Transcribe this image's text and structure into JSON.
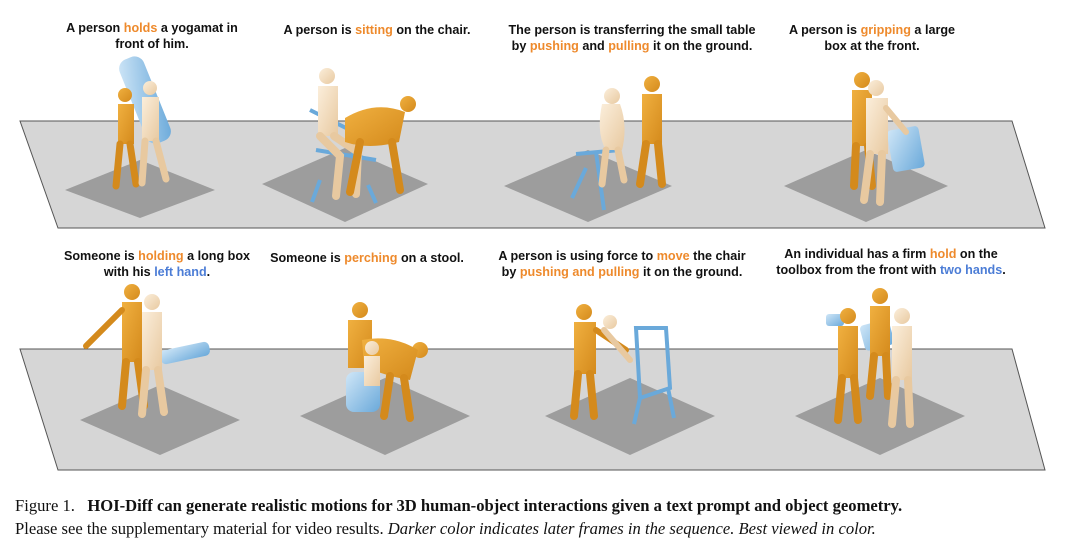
{
  "rows": [
    {
      "panels": [
        {
          "caption": [
            [
              {
                "t": "A person "
              },
              {
                "t": "holds",
                "c": "or"
              },
              {
                "t": " a yogamat in"
              }
            ],
            [
              {
                "t": "front of him."
              }
            ]
          ]
        },
        {
          "caption": [
            [
              {
                "t": "A person is "
              },
              {
                "t": "sitting",
                "c": "or"
              },
              {
                "t": " on the chair."
              }
            ]
          ]
        },
        {
          "caption": [
            [
              {
                "t": "The person is transferring the small table"
              }
            ],
            [
              {
                "t": "by "
              },
              {
                "t": "pushing",
                "c": "or"
              },
              {
                "t": " and "
              },
              {
                "t": "pulling",
                "c": "or"
              },
              {
                "t": " it on the ground."
              }
            ]
          ]
        },
        {
          "caption": [
            [
              {
                "t": "A person is "
              },
              {
                "t": "gripping",
                "c": "or"
              },
              {
                "t": " a large"
              }
            ],
            [
              {
                "t": "box at the front."
              }
            ]
          ]
        }
      ]
    },
    {
      "panels": [
        {
          "caption": [
            [
              {
                "t": "Someone is "
              },
              {
                "t": "holding",
                "c": "or"
              },
              {
                "t": " a long box"
              }
            ],
            [
              {
                "t": "with his "
              },
              {
                "t": "left hand",
                "c": "bl"
              },
              {
                "t": "."
              }
            ]
          ]
        },
        {
          "caption": [
            [
              {
                "t": "Someone is "
              },
              {
                "t": "perching",
                "c": "or"
              },
              {
                "t": " on a stool."
              }
            ]
          ]
        },
        {
          "caption": [
            [
              {
                "t": "A person is using force to "
              },
              {
                "t": "move",
                "c": "or"
              },
              {
                "t": " the chair"
              }
            ],
            [
              {
                "t": "by "
              },
              {
                "t": "pushing and pulling",
                "c": "or"
              },
              {
                "t": " it on the ground."
              }
            ]
          ]
        },
        {
          "caption": [
            [
              {
                "t": "An individual has a firm "
              },
              {
                "t": "hold",
                "c": "or"
              },
              {
                "t": " on the"
              }
            ],
            [
              {
                "t": "toolbox from the front with "
              },
              {
                "t": "two hands",
                "c": "bl"
              },
              {
                "t": "."
              }
            ]
          ]
        }
      ]
    }
  ],
  "figure_caption": {
    "label": "Figure 1.",
    "title": "HOI-Diff can generate realistic motions for 3D human-object interactions given a text prompt and object geometry.",
    "line2_plain": "Please see the supplementary material for video results.",
    "line2_italic": "Darker color indicates later frames in the sequence. Best viewed in color."
  },
  "colors": {
    "accent_orange": "#ee8a2c",
    "accent_blue": "#4c7dd6",
    "body_dark": "#e39a2a",
    "body_light": "#f2dcbc",
    "object_blue": "#8ec3e8",
    "floor_light": "#cfcfcf",
    "floor_dark": "#9a9a9a"
  }
}
